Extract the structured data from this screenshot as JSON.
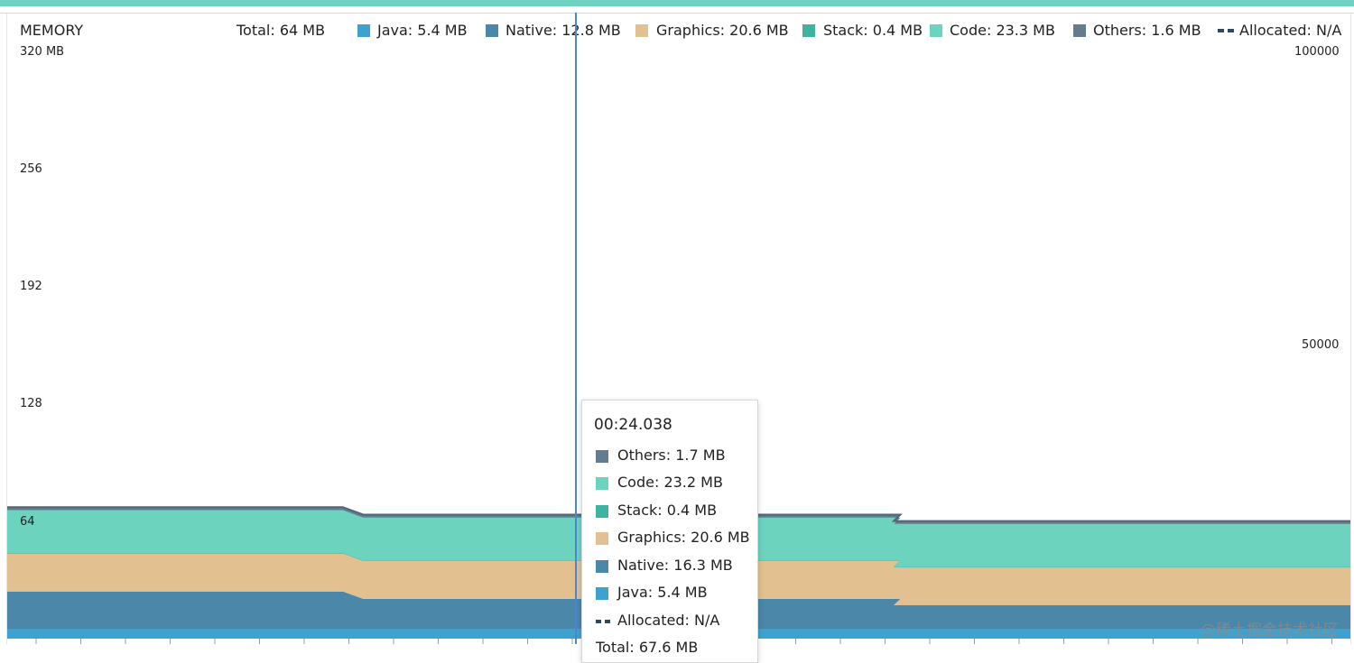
{
  "title": "MEMORY",
  "legend": {
    "total": "Total: 64 MB",
    "items": [
      {
        "label": "Java: 5.4 MB",
        "color": "#3ea2d0",
        "kind": "swatch"
      },
      {
        "label": "Native: 12.8 MB",
        "color": "#4a87a8",
        "kind": "swatch"
      },
      {
        "label": "Graphics: 20.6 MB",
        "color": "#e2c08f",
        "kind": "swatch"
      },
      {
        "label": "Stack: 0.4 MB",
        "color": "#3fb3a0",
        "kind": "swatch"
      },
      {
        "label": "Code: 23.3 MB",
        "color": "#6cd3bf",
        "kind": "swatch"
      },
      {
        "label": "Others: 1.6 MB",
        "color": "#637d8e",
        "kind": "swatch"
      },
      {
        "label": "Allocated: N/A",
        "color": "#2c4a5e",
        "kind": "dash"
      }
    ]
  },
  "left_axis": {
    "top_label": "320 MB",
    "ticks": [
      "256",
      "192",
      "128",
      "64"
    ]
  },
  "right_axis": {
    "ticks": [
      "100000",
      "50000"
    ]
  },
  "tooltip": {
    "time": "00:24.038",
    "rows": [
      {
        "label": "Others: 1.7 MB",
        "color": "#637d8e",
        "kind": "swatch"
      },
      {
        "label": "Code: 23.2 MB",
        "color": "#6cd3bf",
        "kind": "swatch"
      },
      {
        "label": "Stack: 0.4 MB",
        "color": "#3fb3a0",
        "kind": "swatch"
      },
      {
        "label": "Graphics: 20.6 MB",
        "color": "#e2c08f",
        "kind": "swatch"
      },
      {
        "label": "Native: 16.3 MB",
        "color": "#4a87a8",
        "kind": "swatch"
      },
      {
        "label": "Java: 5.4 MB",
        "color": "#3ea2d0",
        "kind": "swatch"
      },
      {
        "label": "Allocated: N/A",
        "color": "#2c4a5e",
        "kind": "dash"
      }
    ],
    "total": "Total: 67.6 MB"
  },
  "watermark": "@稀土掘金技术社区",
  "chart_data": {
    "type": "area",
    "stacked": true,
    "ylim": [
      0,
      320
    ],
    "y2lim": [
      0,
      100000
    ],
    "x": [
      0,
      0.25,
      0.265,
      0.62,
      0.665,
      0.66,
      0.99,
      1.0
    ],
    "series": [
      {
        "name": "Java",
        "color": "#3ea2d0",
        "values": [
          5.4,
          5.4,
          5.4,
          5.4,
          5.4,
          5.4,
          5.4,
          5.4
        ]
      },
      {
        "name": "Native",
        "color": "#4a87a8",
        "values": [
          20.3,
          20.3,
          16.3,
          16.3,
          16.3,
          12.8,
          12.8,
          12.8
        ]
      },
      {
        "name": "Graphics",
        "color": "#e2c08f",
        "values": [
          20.6,
          20.6,
          20.6,
          20.6,
          20.6,
          20.6,
          20.6,
          20.6
        ]
      },
      {
        "name": "Stack",
        "color": "#3fb3a0",
        "values": [
          0.4,
          0.4,
          0.4,
          0.4,
          0.4,
          0.4,
          0.4,
          0.4
        ]
      },
      {
        "name": "Code",
        "color": "#6cd3bf",
        "values": [
          23.3,
          23.3,
          23.2,
          23.2,
          23.2,
          23.3,
          23.3,
          23.3
        ]
      },
      {
        "name": "Others",
        "color": "#637d8e",
        "values": [
          1.6,
          1.6,
          1.7,
          1.7,
          1.7,
          1.6,
          1.6,
          1.6
        ]
      }
    ]
  }
}
